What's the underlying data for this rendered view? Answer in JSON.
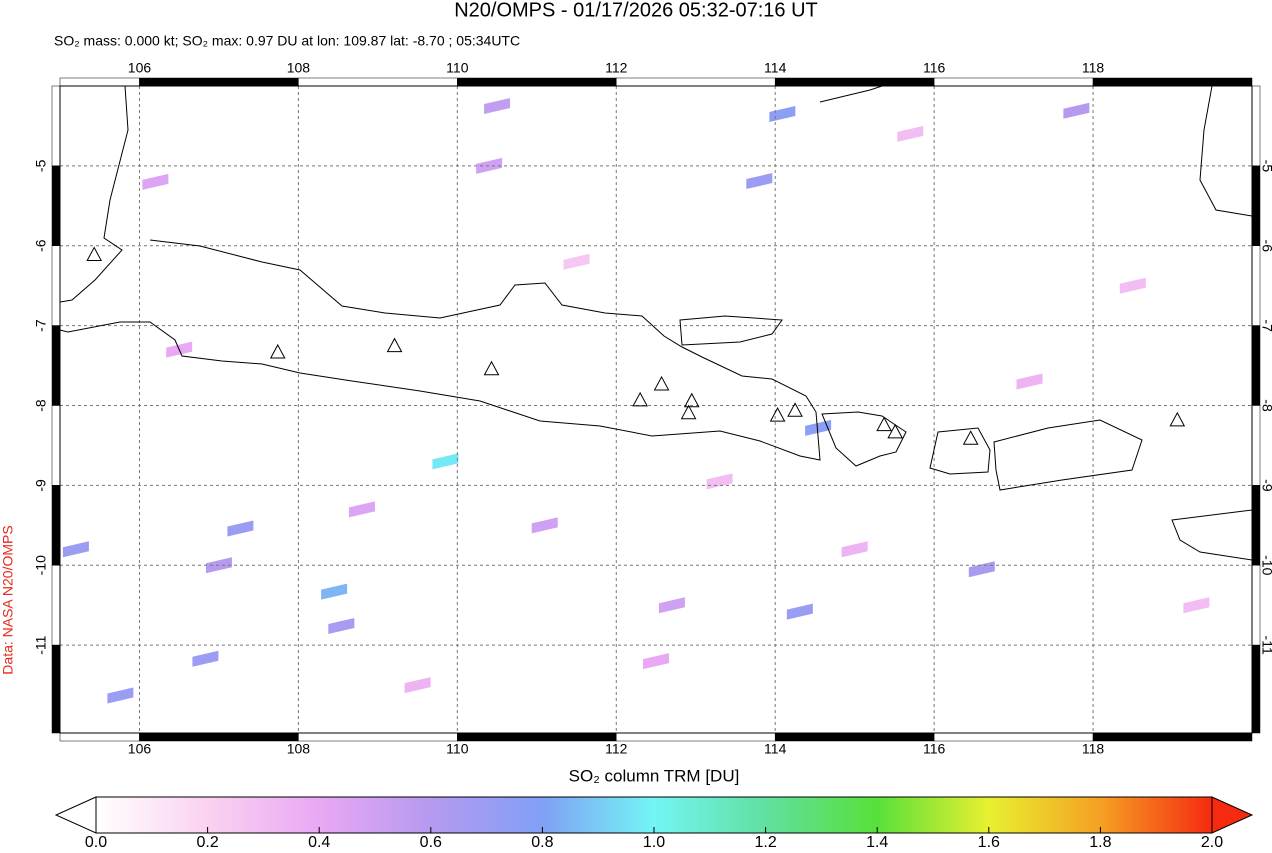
{
  "chart_data": {
    "type": "map",
    "title": "N20/OMPS - 01/17/2026 05:32-07:16 UT",
    "subtitle": "SO₂ mass: 0.000 kt; SO₂ max: 0.97 DU at lon: 109.87 lat: -8.70 ; 05:34UTC",
    "credit": "Data: NASA N20/OMPS",
    "xlim": [
      105,
      120
    ],
    "ylim": [
      -12.1,
      -4
    ],
    "xticks": [
      106,
      108,
      110,
      112,
      114,
      116,
      118
    ],
    "yticks": [
      -5,
      -6,
      -7,
      -8,
      -9,
      -10,
      -11
    ],
    "grid": true,
    "colorbar": {
      "label": "SO₂ column TRM [DU]",
      "lim": [
        0,
        2
      ],
      "ticks": [
        {
          "value": 0,
          "label": "0.0"
        },
        {
          "value": 0.2,
          "label": "0.2"
        },
        {
          "value": 0.4,
          "label": "0.4"
        },
        {
          "value": 0.6,
          "label": "0.6"
        },
        {
          "value": 0.8,
          "label": "0.8"
        },
        {
          "value": 1,
          "label": "1.0"
        },
        {
          "value": 1.2,
          "label": "1.2"
        },
        {
          "value": 1.4,
          "label": "1.4"
        },
        {
          "value": 1.6,
          "label": "1.6"
        },
        {
          "value": 1.8,
          "label": "1.8"
        },
        {
          "value": 2,
          "label": "2.0"
        }
      ]
    },
    "volcanoes": [
      {
        "lon": 105.43,
        "lat": -6.11
      },
      {
        "lon": 107.74,
        "lat": -7.33
      },
      {
        "lon": 109.21,
        "lat": -7.25
      },
      {
        "lon": 110.43,
        "lat": -7.54
      },
      {
        "lon": 112.3,
        "lat": -7.93
      },
      {
        "lon": 112.57,
        "lat": -7.73
      },
      {
        "lon": 112.95,
        "lat": -7.94
      },
      {
        "lon": 112.91,
        "lat": -8.09
      },
      {
        "lon": 114.03,
        "lat": -8.12
      },
      {
        "lon": 114.25,
        "lat": -8.06
      },
      {
        "lon": 115.37,
        "lat": -8.24
      },
      {
        "lon": 115.51,
        "lat": -8.33
      },
      {
        "lon": 116.46,
        "lat": -8.41
      },
      {
        "lon": 119.06,
        "lat": -8.18
      }
    ],
    "pixels": [
      {
        "lon": 109.85,
        "lat": -8.7,
        "value": 0.97
      },
      {
        "lon": 114.09,
        "lat": -4.35,
        "value": 0.75
      },
      {
        "lon": 113.8,
        "lat": -5.19,
        "value": 0.7
      },
      {
        "lon": 114.54,
        "lat": -8.28,
        "value": 0.75
      },
      {
        "lon": 108.45,
        "lat": -10.33,
        "value": 0.85
      },
      {
        "lon": 107.27,
        "lat": -9.54,
        "value": 0.7
      },
      {
        "lon": 105.2,
        "lat": -9.8,
        "value": 0.7
      },
      {
        "lon": 106.83,
        "lat": -11.17,
        "value": 0.7
      },
      {
        "lon": 105.76,
        "lat": -11.63,
        "value": 0.7
      },
      {
        "lon": 108.54,
        "lat": -10.76,
        "value": 0.65
      },
      {
        "lon": 114.31,
        "lat": -10.58,
        "value": 0.7
      },
      {
        "lon": 116.6,
        "lat": -10.05,
        "value": 0.65
      },
      {
        "lon": 117.79,
        "lat": -4.31,
        "value": 0.6
      },
      {
        "lon": 107.0,
        "lat": -10.0,
        "value": 0.6
      },
      {
        "lon": 106.5,
        "lat": -7.3,
        "value": 0.4
      },
      {
        "lon": 106.2,
        "lat": -5.2,
        "value": 0.45
      },
      {
        "lon": 110.5,
        "lat": -4.25,
        "value": 0.55
      },
      {
        "lon": 110.4,
        "lat": -5.0,
        "value": 0.5
      },
      {
        "lon": 111.1,
        "lat": -9.5,
        "value": 0.5
      },
      {
        "lon": 112.7,
        "lat": -10.5,
        "value": 0.5
      },
      {
        "lon": 108.8,
        "lat": -9.3,
        "value": 0.45
      },
      {
        "lon": 112.5,
        "lat": -11.2,
        "value": 0.4
      },
      {
        "lon": 115.0,
        "lat": -9.8,
        "value": 0.35
      },
      {
        "lon": 117.2,
        "lat": -7.7,
        "value": 0.35
      },
      {
        "lon": 118.5,
        "lat": -6.5,
        "value": 0.3
      },
      {
        "lon": 119.3,
        "lat": -10.5,
        "value": 0.3
      },
      {
        "lon": 111.5,
        "lat": -6.2,
        "value": 0.25
      },
      {
        "lon": 115.7,
        "lat": -4.6,
        "value": 0.3
      },
      {
        "lon": 109.5,
        "lat": -11.5,
        "value": 0.35
      },
      {
        "lon": 113.3,
        "lat": -8.95,
        "value": 0.3
      }
    ]
  }
}
